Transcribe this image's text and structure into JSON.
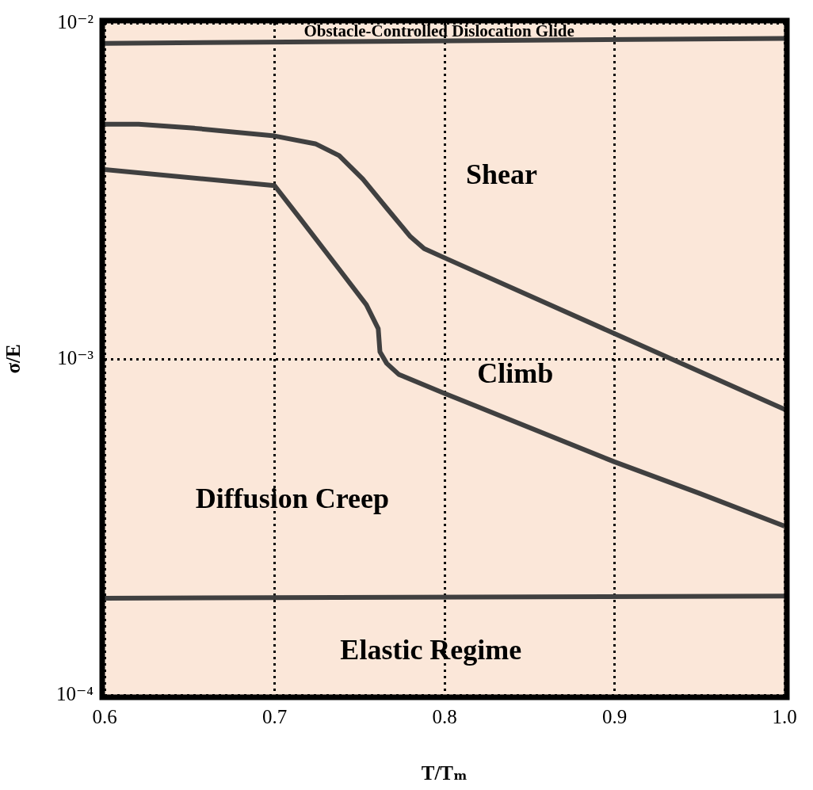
{
  "chart_data": {
    "type": "line",
    "xlabel": "T/Tₘ",
    "ylabel": "σ/E",
    "log": "y",
    "grid": true,
    "legend": false,
    "line_style": "solid",
    "marker": "none",
    "xlim": [
      0.6,
      1.0
    ],
    "xticks": [
      0.6,
      0.7,
      0.8,
      0.9,
      {
        "value": 1.0,
        "label": "1.0"
      }
    ],
    "ylim": [
      0.0001,
      0.01
    ],
    "yticks": [
      {
        "value": 0.0001,
        "label": "10⁻⁴"
      },
      {
        "value": 0.001,
        "label": "10⁻³"
      },
      {
        "value": 0.01,
        "label": "10⁻²"
      }
    ],
    "series": [
      {
        "color": "#404040",
        "x": [
          0.6,
          1.0
        ],
        "values": [
          0.0087,
          0.009
        ]
      },
      {
        "color": "#404040",
        "x": [
          0.6,
          0.62,
          0.653,
          0.7,
          0.724,
          0.738,
          0.752,
          0.766,
          0.78,
          0.788,
          0.8,
          0.9,
          1.0
        ],
        "values": [
          0.005,
          0.005,
          0.00486,
          0.00461,
          0.00437,
          0.00403,
          0.00343,
          0.00281,
          0.00231,
          0.00213,
          0.002,
          0.00119,
          0.000708
        ]
      },
      {
        "color": "#404040",
        "x": [
          0.6,
          0.7,
          0.715,
          0.738,
          0.754,
          0.761,
          0.762,
          0.766,
          0.773,
          0.8,
          0.9,
          0.95,
          1.0
        ],
        "values": [
          0.00366,
          0.00328,
          0.00262,
          0.00185,
          0.00145,
          0.00123,
          0.00105,
          0.00097,
          0.0009,
          0.00079,
          0.000494,
          0.000398,
          0.000318
        ]
      },
      {
        "color": "#404040",
        "x": [
          0.6,
          1.0
        ],
        "values": [
          0.000194,
          0.000197
        ]
      }
    ],
    "annotations": [
      "Obstacle-Controlled Dislocation Glide",
      "Shear",
      "Climb",
      "Diffusion Creep",
      "Elastic Regime"
    ]
  }
}
